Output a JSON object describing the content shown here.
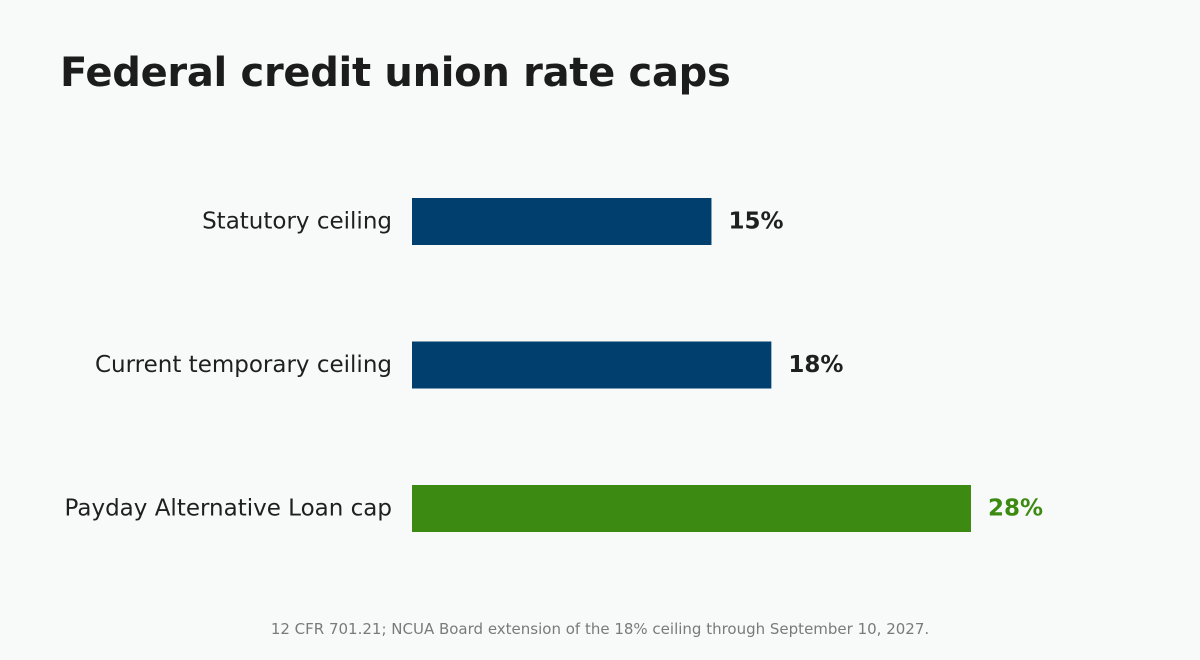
{
  "title": "Federal credit union rate caps",
  "caption": "12 CFR 701.21; NCUA Board extension of the 18% ceiling through September 10, 2027.",
  "colors": {
    "background": "#f8faf9",
    "bar_navy": "#003f6e",
    "bar_green": "#3c8a12",
    "label_dark": "#1f1f1f",
    "caption_gray": "#7a7a7a"
  },
  "chart_data": {
    "type": "bar",
    "orientation": "horizontal",
    "categories": [
      "Statutory ceiling",
      "Current temporary ceiling",
      "Payday Alternative Loan cap"
    ],
    "values": [
      15,
      18,
      28
    ],
    "value_labels": [
      "15%",
      "18%",
      "28%"
    ],
    "bar_colors": [
      "#003f6e",
      "#003f6e",
      "#3c8a12"
    ],
    "value_label_colors": [
      "#1f1f1f",
      "#1f1f1f",
      "#3c8a12"
    ],
    "xlim": [
      0,
      28
    ],
    "grid": false,
    "axes_visible": false
  }
}
